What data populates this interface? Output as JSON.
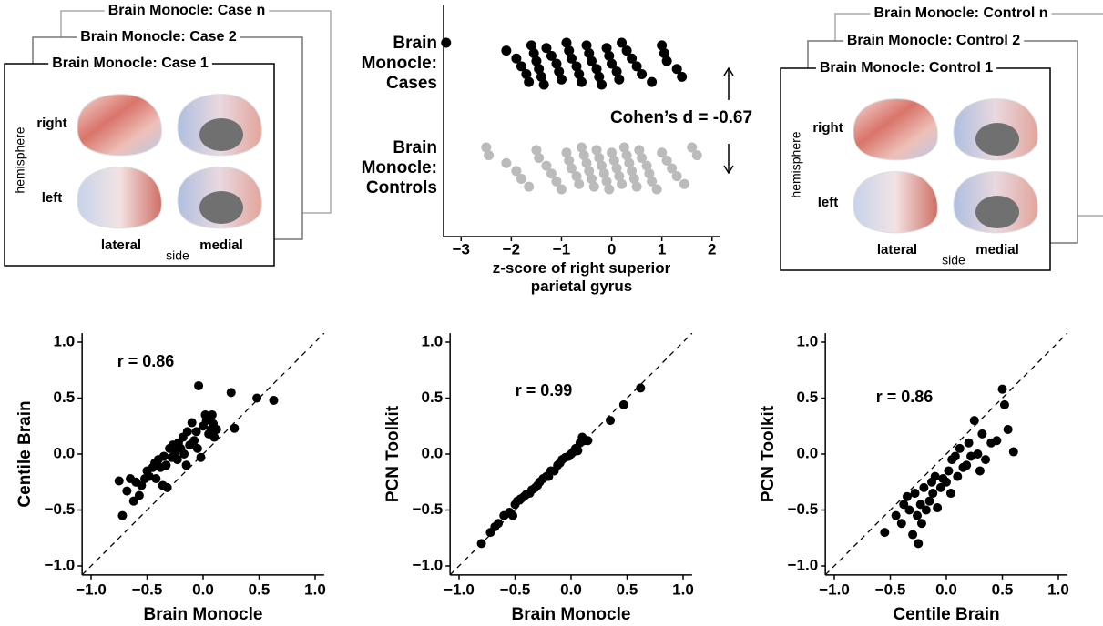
{
  "left_panel": {
    "titles": [
      "Brain Monocle: Case n",
      "Brain Monocle: Case 2",
      "Brain Monocle: Case 1"
    ],
    "row_labels": [
      "right",
      "left"
    ],
    "y_label": "hemisphere",
    "col_labels": [
      "lateral",
      "medial"
    ],
    "x_label": "side"
  },
  "right_panel": {
    "titles": [
      "Brain Monocle: Control n",
      "Brain Monocle: Control 2",
      "Brain Monocle: Control 1"
    ],
    "row_labels": [
      "right",
      "left"
    ],
    "y_label": "hemisphere",
    "col_labels": [
      "lateral",
      "medial"
    ],
    "x_label": "side"
  },
  "chart_data": [
    {
      "type": "strip",
      "categories": [
        "Brain Monocle: Cases",
        "Brain Monocle: Controls"
      ],
      "series": [
        {
          "color": "#000000",
          "values": [
            -3.3,
            -2.1,
            -1.9,
            -1.8,
            -1.7,
            -1.65,
            -1.6,
            -1.55,
            -1.5,
            -1.45,
            -1.4,
            -1.35,
            -1.3,
            -1.2,
            -1.1,
            -1.05,
            -1.0,
            -0.9,
            -0.85,
            -0.8,
            -0.7,
            -0.65,
            -0.6,
            -0.5,
            -0.45,
            -0.4,
            -0.3,
            -0.25,
            -0.2,
            -0.1,
            -0.05,
            0.0,
            0.1,
            0.15,
            0.2,
            0.3,
            0.4,
            0.5,
            0.6,
            0.8,
            1.0,
            1.05,
            1.1,
            1.3,
            1.4
          ]
        },
        {
          "color": "#bbbbbb",
          "values": [
            -2.5,
            -2.45,
            -2.1,
            -1.9,
            -1.8,
            -1.65,
            -1.5,
            -1.45,
            -1.3,
            -1.2,
            -1.1,
            -1.0,
            -0.9,
            -0.85,
            -0.8,
            -0.7,
            -0.65,
            -0.6,
            -0.55,
            -0.5,
            -0.45,
            -0.4,
            -0.35,
            -0.3,
            -0.25,
            -0.2,
            -0.15,
            -0.1,
            -0.05,
            0.0,
            0.05,
            0.1,
            0.15,
            0.2,
            0.25,
            0.3,
            0.35,
            0.4,
            0.45,
            0.5,
            0.55,
            0.6,
            0.7,
            0.75,
            0.8,
            0.9,
            1.0,
            1.1,
            1.2,
            1.3,
            1.45,
            1.6,
            1.7
          ]
        }
      ],
      "xlim": [
        -3.35,
        2.15
      ],
      "xticks": [
        {
          "value": -3,
          "label": "−3"
        },
        {
          "value": -2,
          "label": "−2"
        },
        {
          "value": -1,
          "label": "−1"
        },
        0,
        1,
        2
      ],
      "xlabel": "z-score of right superior parietal gyrus",
      "annotation": "Cohen’s d = -0.67"
    },
    {
      "type": "scatter",
      "xlabel": "Brain Monocle",
      "ylabel": "Centile Brain",
      "annotation": "r = 0.86",
      "color": "#000000",
      "x": [
        -0.75,
        -0.72,
        -0.68,
        -0.65,
        -0.62,
        -0.6,
        -0.57,
        -0.55,
        -0.52,
        -0.5,
        -0.48,
        -0.45,
        -0.43,
        -0.42,
        -0.4,
        -0.38,
        -0.36,
        -0.35,
        -0.33,
        -0.32,
        -0.3,
        -0.28,
        -0.27,
        -0.25,
        -0.23,
        -0.22,
        -0.2,
        -0.18,
        -0.17,
        -0.15,
        -0.14,
        -0.12,
        -0.1,
        -0.08,
        -0.06,
        -0.05,
        -0.04,
        -0.02,
        0.0,
        0.02,
        0.03,
        0.05,
        0.06,
        0.07,
        0.08,
        0.09,
        0.1,
        0.12,
        0.25,
        0.28,
        0.48,
        0.63
      ],
      "values": [
        -0.24,
        -0.55,
        -0.33,
        -0.22,
        -0.42,
        -0.25,
        -0.37,
        -0.28,
        -0.22,
        -0.15,
        -0.2,
        -0.12,
        -0.08,
        -0.22,
        -0.05,
        -0.12,
        -0.28,
        -0.02,
        -0.1,
        -0.3,
        0.05,
        -0.03,
        0.08,
        0.02,
        -0.05,
        0.1,
        0.05,
        0.15,
        0.0,
        -0.1,
        0.2,
        0.08,
        0.28,
        0.12,
        0.2,
        0.05,
        0.61,
        -0.03,
        0.25,
        0.35,
        0.3,
        0.18,
        0.32,
        0.22,
        0.35,
        0.27,
        0.15,
        0.22,
        0.55,
        0.23,
        0.5,
        0.48
      ],
      "xlim": [
        -1.08,
        1.08
      ],
      "ylim": [
        -1.08,
        1.08
      ],
      "xticks": [
        {
          "value": -1,
          "label": "−1.0"
        },
        {
          "value": -0.5,
          "label": "−0.5"
        },
        {
          "value": 0,
          "label": "0.0"
        },
        0.5,
        {
          "value": 1,
          "label": "1.0"
        }
      ],
      "yticks": [
        {
          "value": -1,
          "label": "−1.0"
        },
        {
          "value": -0.5,
          "label": "−0.5"
        },
        {
          "value": 0,
          "label": "0.0"
        },
        0.5,
        {
          "value": 1,
          "label": "1.0"
        }
      ]
    },
    {
      "type": "scatter",
      "xlabel": "Brain Monocle",
      "ylabel": "PCN Toolkit",
      "annotation": "r = 0.99",
      "color": "#000000",
      "x": [
        -0.8,
        -0.72,
        -0.68,
        -0.65,
        -0.6,
        -0.55,
        -0.52,
        -0.5,
        -0.48,
        -0.45,
        -0.42,
        -0.4,
        -0.37,
        -0.35,
        -0.32,
        -0.3,
        -0.28,
        -0.25,
        -0.22,
        -0.2,
        -0.18,
        -0.15,
        -0.12,
        -0.1,
        -0.08,
        -0.05,
        -0.02,
        0.0,
        0.02,
        0.04,
        0.06,
        0.08,
        0.1,
        0.12,
        0.15,
        0.35,
        0.47,
        0.62
      ],
      "values": [
        -0.8,
        -0.7,
        -0.65,
        -0.62,
        -0.55,
        -0.52,
        -0.55,
        -0.45,
        -0.42,
        -0.4,
        -0.38,
        -0.36,
        -0.35,
        -0.32,
        -0.3,
        -0.28,
        -0.25,
        -0.22,
        -0.2,
        -0.2,
        -0.15,
        -0.15,
        -0.1,
        -0.08,
        -0.05,
        -0.03,
        -0.02,
        0.0,
        0.02,
        0.05,
        0.03,
        0.1,
        0.15,
        0.12,
        0.12,
        0.3,
        0.44,
        0.59
      ],
      "xlim": [
        -1.08,
        1.08
      ],
      "ylim": [
        -1.08,
        1.08
      ],
      "xticks": [
        {
          "value": -1,
          "label": "−1.0"
        },
        {
          "value": -0.5,
          "label": "−0.5"
        },
        {
          "value": 0,
          "label": "0.0"
        },
        0.5,
        {
          "value": 1,
          "label": "1.0"
        }
      ],
      "yticks": [
        {
          "value": -1,
          "label": "−1.0"
        },
        {
          "value": -0.5,
          "label": "−0.5"
        },
        {
          "value": 0,
          "label": "0.0"
        },
        0.5,
        {
          "value": 1,
          "label": "1.0"
        }
      ]
    },
    {
      "type": "scatter",
      "xlabel": "Centile Brain",
      "ylabel": "PCN Toolkit",
      "annotation": "r = 0.86",
      "color": "#000000",
      "x": [
        -0.55,
        -0.45,
        -0.4,
        -0.38,
        -0.35,
        -0.33,
        -0.3,
        -0.28,
        -0.26,
        -0.25,
        -0.23,
        -0.22,
        -0.2,
        -0.18,
        -0.15,
        -0.13,
        -0.12,
        -0.1,
        -0.08,
        -0.05,
        -0.03,
        0.0,
        0.02,
        0.04,
        0.05,
        0.08,
        0.1,
        0.12,
        0.15,
        0.18,
        0.2,
        0.22,
        0.25,
        0.28,
        0.3,
        0.32,
        0.35,
        0.4,
        0.45,
        0.5,
        0.52,
        0.55,
        0.6
      ],
      "values": [
        -0.7,
        -0.55,
        -0.62,
        -0.45,
        -0.38,
        -0.5,
        -0.72,
        -0.35,
        -0.55,
        -0.8,
        -0.45,
        -0.62,
        -0.3,
        -0.5,
        -0.42,
        -0.25,
        -0.35,
        -0.2,
        -0.48,
        -0.3,
        -0.22,
        -0.25,
        -0.15,
        -0.35,
        -0.05,
        -0.02,
        -0.2,
        0.05,
        -0.12,
        -0.1,
        0.1,
        -0.02,
        0.3,
        0.0,
        -0.15,
        0.18,
        -0.05,
        0.1,
        0.12,
        0.58,
        0.44,
        0.22,
        0.02
      ],
      "xlim": [
        -1.08,
        1.08
      ],
      "ylim": [
        -1.08,
        1.08
      ],
      "xticks": [
        {
          "value": -1,
          "label": "−1.0"
        },
        {
          "value": -0.5,
          "label": "−0.5"
        },
        {
          "value": 0,
          "label": "0.0"
        },
        0.5,
        {
          "value": 1,
          "label": "1.0"
        }
      ],
      "yticks": [
        {
          "value": -1,
          "label": "−1.0"
        },
        {
          "value": -0.5,
          "label": "−0.5"
        },
        {
          "value": 0,
          "label": "0.0"
        },
        0.5,
        {
          "value": 1,
          "label": "1.0"
        }
      ]
    }
  ]
}
